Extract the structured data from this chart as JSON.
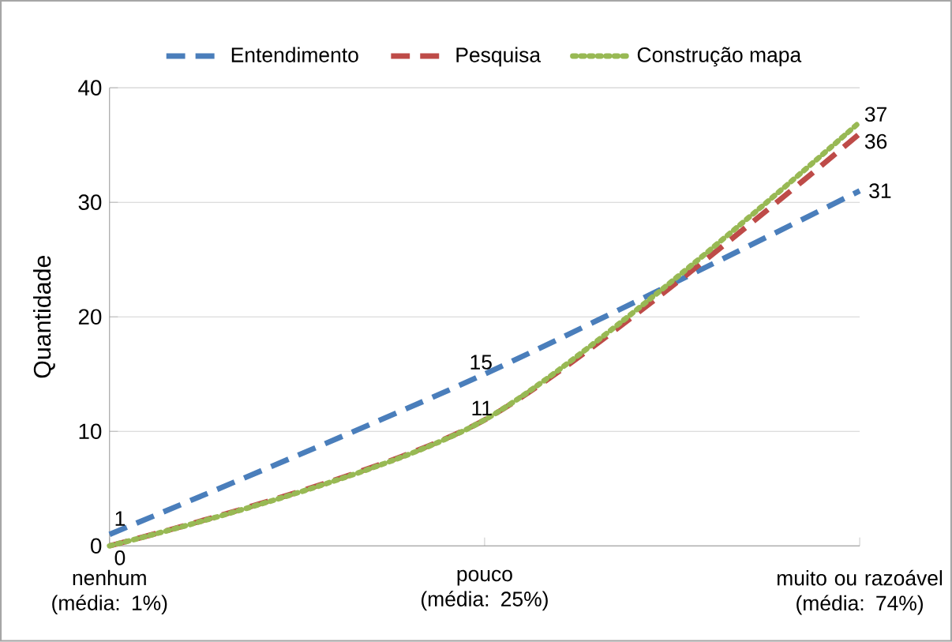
{
  "chart_data": {
    "type": "line",
    "ylabel": "Quantidade",
    "categories": [
      "nenhum (média: 1%)",
      "pouco (média: 25%)",
      "muito ou razoável (média: 74%)"
    ],
    "series": [
      {
        "name": "Entendimento",
        "color": "#4a7ebb",
        "line_style": "dashed",
        "values": [
          1,
          15,
          31
        ],
        "value_labels": [
          "1",
          "15",
          "31"
        ]
      },
      {
        "name": "Pesquisa",
        "color": "#be4b48",
        "line_style": "dashed",
        "values": [
          0,
          11,
          36
        ],
        "value_labels": [
          null,
          null,
          "36"
        ]
      },
      {
        "name": "Construção mapa",
        "color": "#98b954",
        "line_style": "dotted",
        "values": [
          0,
          11,
          37
        ],
        "value_labels": [
          "0",
          "11",
          "37"
        ]
      }
    ],
    "ylim": [
      0,
      40
    ],
    "yticks": [
      0,
      10,
      20,
      30,
      40
    ],
    "grid": "y",
    "legend": "top",
    "marker": "none"
  }
}
